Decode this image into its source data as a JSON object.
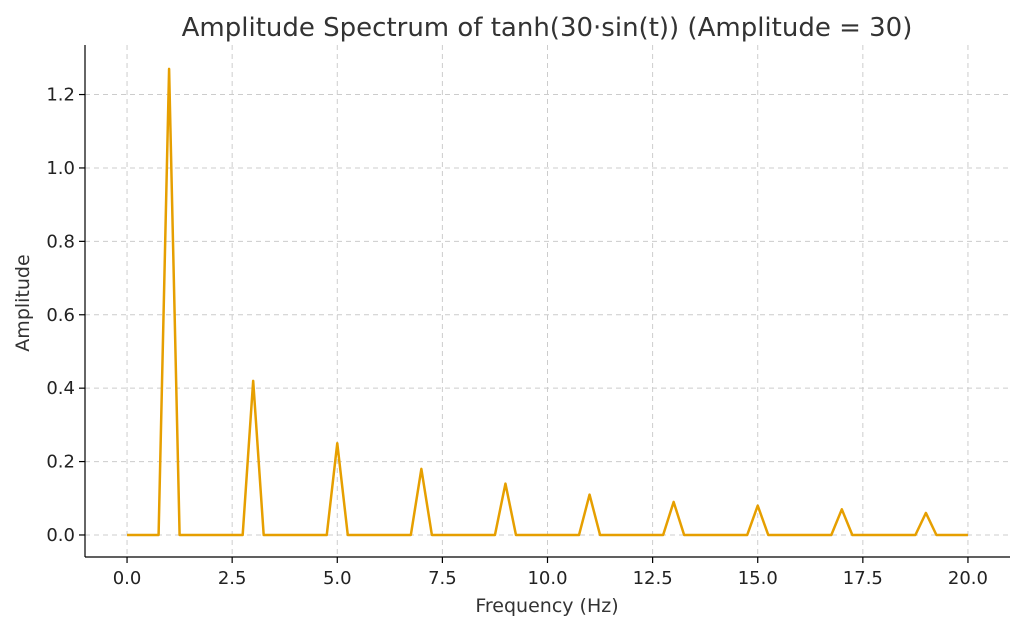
{
  "chart_data": {
    "type": "line",
    "title": "Amplitude Spectrum of tanh(30·sin(t))  (Amplitude = 30)",
    "xlabel": "Frequency (Hz)",
    "ylabel": "Amplitude",
    "xlim": [
      -1.0,
      21.0
    ],
    "ylim": [
      -0.06,
      1.335
    ],
    "xticks": [
      0.0,
      2.5,
      5.0,
      7.5,
      10.0,
      12.5,
      15.0,
      17.5,
      20.0
    ],
    "xtick_labels": [
      "0.0",
      "2.5",
      "5.0",
      "7.5",
      "10.0",
      "12.5",
      "15.0",
      "17.5",
      "20.0"
    ],
    "yticks": [
      0.0,
      0.2,
      0.4,
      0.6,
      0.8,
      1.0,
      1.2
    ],
    "ytick_labels": [
      "0.0",
      "0.2",
      "0.4",
      "0.6",
      "0.8",
      "1.0",
      "1.2"
    ],
    "grid": true,
    "legend": "none",
    "series": [
      {
        "color": "#E69F00",
        "x": [
          0.0,
          0.75,
          1.0,
          1.25,
          2.75,
          3.0,
          3.25,
          4.75,
          5.0,
          5.25,
          6.75,
          7.0,
          7.25,
          8.75,
          9.0,
          9.25,
          10.75,
          11.0,
          11.25,
          12.75,
          13.0,
          13.25,
          14.75,
          15.0,
          15.25,
          16.75,
          17.0,
          17.25,
          18.75,
          19.0,
          19.25,
          20.0
        ],
        "y": [
          0.0,
          0.0,
          1.27,
          0.0,
          0.0,
          0.42,
          0.0,
          0.0,
          0.25,
          0.0,
          0.0,
          0.18,
          0.0,
          0.0,
          0.14,
          0.0,
          0.0,
          0.11,
          0.0,
          0.0,
          0.09,
          0.0,
          0.0,
          0.08,
          0.0,
          0.0,
          0.07,
          0.0,
          0.0,
          0.06,
          0.0,
          0.0
        ]
      }
    ]
  }
}
